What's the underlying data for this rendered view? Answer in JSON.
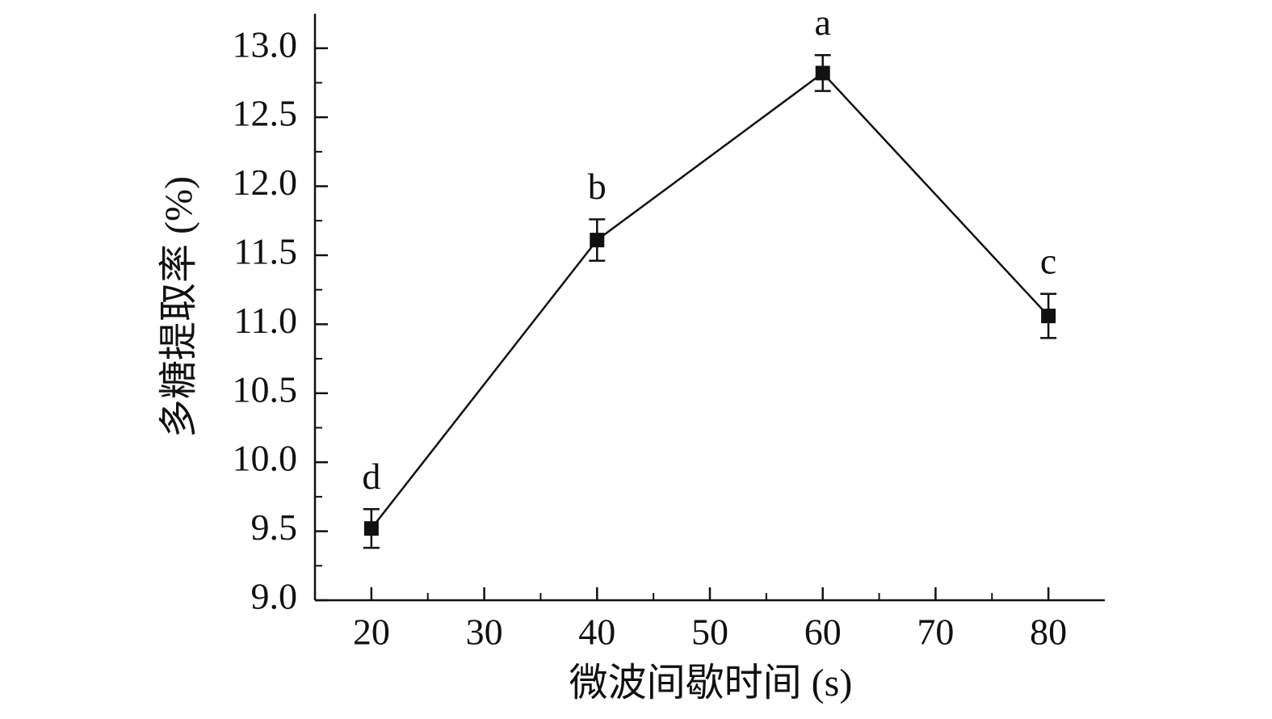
{
  "chart_data": {
    "type": "line",
    "x_label": "微波间歇时间 (s)",
    "y_label": "多糖提取率 (%)",
    "x": [
      20,
      40,
      60,
      80
    ],
    "series": [
      {
        "color": "#111111",
        "values": [
          9.52,
          11.61,
          12.82,
          11.06
        ],
        "errors": [
          0.14,
          0.15,
          0.13,
          0.16
        ]
      }
    ],
    "annotations": [
      "d",
      "b",
      "a",
      "c"
    ],
    "xlim": [
      15,
      85
    ],
    "xticks": [
      20,
      30,
      40,
      50,
      60,
      70,
      80
    ],
    "xminor_ticks": [
      25,
      35,
      45,
      55,
      65,
      75
    ],
    "ylim": [
      9.0,
      13.25
    ],
    "yticks": [
      {
        "value": 9.0,
        "label": "9.0"
      },
      9.5,
      {
        "value": 10.0,
        "label": "10.0"
      },
      10.5,
      {
        "value": 11.0,
        "label": "11.0"
      },
      11.5,
      {
        "value": 12.0,
        "label": "12.0"
      },
      12.5,
      {
        "value": 13.0,
        "label": "13.0"
      }
    ],
    "yminor_ticks": [
      9.25,
      9.75,
      10.25,
      10.75,
      11.25,
      11.75,
      12.25,
      12.75
    ]
  }
}
